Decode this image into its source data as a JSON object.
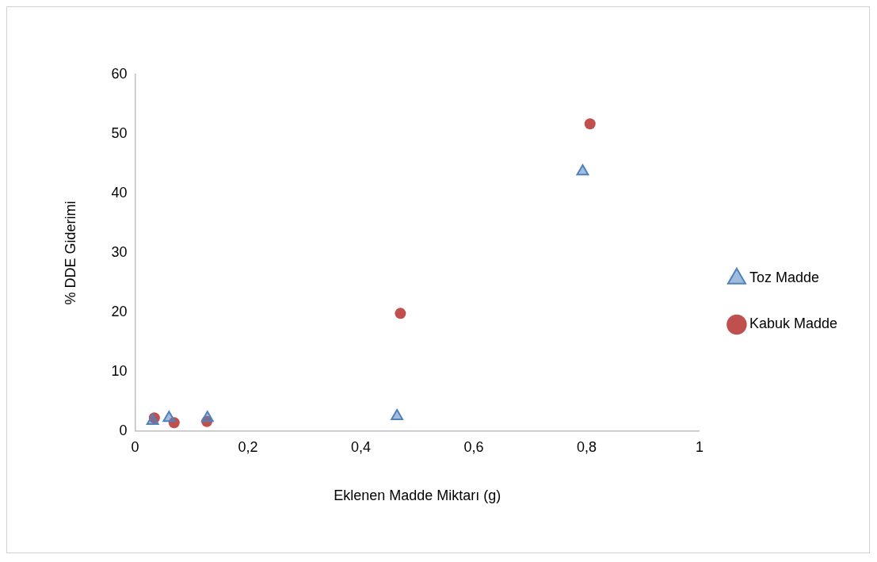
{
  "chart_data": {
    "type": "scatter",
    "xlabel": "Eklenen Madde Miktarı (g)",
    "ylabel": "% DDE Giderimi",
    "xlim": [
      0,
      1
    ],
    "xticks": [
      0,
      {
        "value": 0.2,
        "label": "0,2"
      },
      {
        "value": 0.4,
        "label": "0,4"
      },
      {
        "value": 0.6,
        "label": "0,6"
      },
      {
        "value": 0.8,
        "label": "0,8"
      },
      1
    ],
    "ylim": [
      0,
      60
    ],
    "yticks": [
      0,
      10,
      20,
      30,
      40,
      50,
      60
    ],
    "grid": false,
    "legend": "right",
    "series": [
      {
        "name": "Toz Madde",
        "color": "#4f81bd",
        "marker": "triangle",
        "x": [
          0.031,
          0.06,
          0.128,
          0.464,
          0.793
        ],
        "values": [
          1.7,
          2.2,
          2.2,
          2.5,
          43.7
        ]
      },
      {
        "name": "Kabuk Madde",
        "color": "#c0504d",
        "marker": "circle",
        "x": [
          0.034,
          0.069,
          0.127,
          0.47,
          0.806
        ],
        "values": [
          2.2,
          1.4,
          1.6,
          19.8,
          51.7
        ]
      }
    ]
  }
}
